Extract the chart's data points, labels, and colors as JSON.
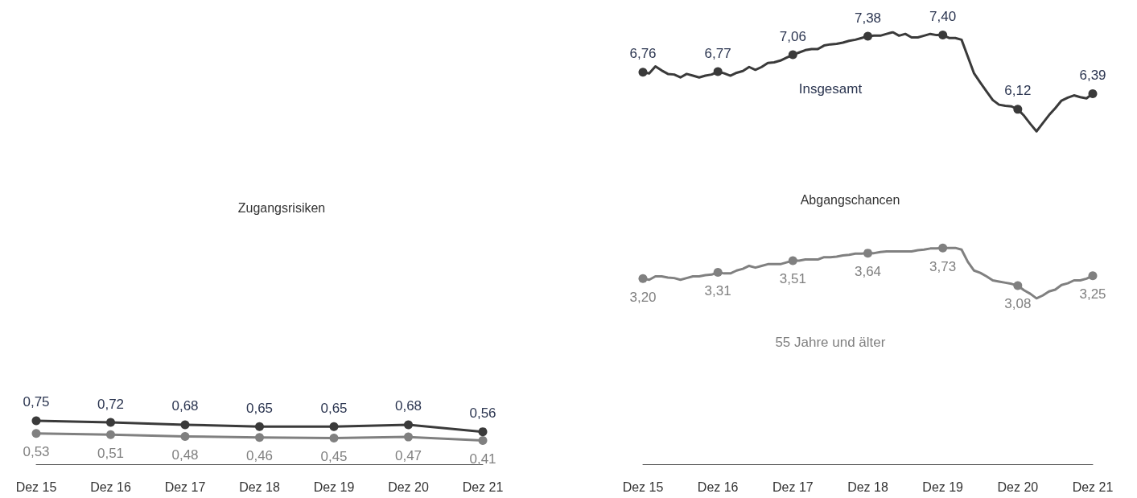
{
  "chart_data": [
    {
      "type": "line",
      "title": "Zugangsrisiken",
      "categories": [
        "Dez 15",
        "Dez 16",
        "Dez 17",
        "Dez 18",
        "Dez 19",
        "Dez 20",
        "Dez 21"
      ],
      "tick_labels": "x",
      "marker": "circle",
      "series": [
        {
          "color": "#3a3a3a",
          "values": [
            0.75,
            0.72,
            0.68,
            0.65,
            0.65,
            0.68,
            0.56
          ],
          "value_labels": [
            "0,75",
            "0,72",
            "0,68",
            "0,65",
            "0,65",
            "0,68",
            "0,56"
          ]
        },
        {
          "color": "#808080",
          "values": [
            0.53,
            0.51,
            0.48,
            0.46,
            0.45,
            0.47,
            0.41
          ],
          "value_labels": [
            "0,53",
            "0,51",
            "0,48",
            "0,46",
            "0,45",
            "0,47",
            "0,41"
          ]
        }
      ]
    },
    {
      "type": "line",
      "title": "Abgangschancen",
      "categories": [
        "Dez 15",
        null,
        null,
        null,
        null,
        null,
        null,
        null,
        null,
        null,
        null,
        null,
        "Dez 16",
        null,
        null,
        null,
        null,
        null,
        null,
        null,
        null,
        null,
        null,
        null,
        "Dez 17",
        null,
        null,
        null,
        null,
        null,
        null,
        null,
        null,
        null,
        null,
        null,
        "Dez 18",
        null,
        null,
        null,
        null,
        null,
        null,
        null,
        null,
        null,
        null,
        null,
        "Dez 19",
        null,
        null,
        null,
        null,
        null,
        null,
        null,
        null,
        null,
        null,
        null,
        "Dez 20",
        null,
        null,
        null,
        null,
        null,
        null,
        null,
        null,
        null,
        null,
        null,
        "Dez 21"
      ],
      "tick_labels": "x",
      "series": [
        {
          "name": "Insgesamt",
          "color": "#3a3a3a",
          "values": [
            6.76,
            6.74,
            6.86,
            6.79,
            6.73,
            6.72,
            6.67,
            6.73,
            6.7,
            6.67,
            6.7,
            6.72,
            6.77,
            6.74,
            6.7,
            6.75,
            6.78,
            6.85,
            6.8,
            6.85,
            6.92,
            6.93,
            6.96,
            7.01,
            7.06,
            7.1,
            7.14,
            7.16,
            7.16,
            7.22,
            7.24,
            7.25,
            7.27,
            7.3,
            7.32,
            7.35,
            7.38,
            7.39,
            7.39,
            7.42,
            7.45,
            7.39,
            7.42,
            7.36,
            7.36,
            7.39,
            7.42,
            7.4,
            7.4,
            7.35,
            7.35,
            7.32,
            7.03,
            6.74,
            6.58,
            6.43,
            6.28,
            6.2,
            6.18,
            6.17,
            6.12,
            6.01,
            5.87,
            5.74,
            5.88,
            6.02,
            6.14,
            6.27,
            6.32,
            6.36,
            6.33,
            6.31,
            6.39
          ],
          "value_labels": [
            "6,76",
            null,
            null,
            null,
            null,
            null,
            null,
            null,
            null,
            null,
            null,
            null,
            "6,77",
            null,
            null,
            null,
            null,
            null,
            null,
            null,
            null,
            null,
            null,
            null,
            "7,06",
            null,
            null,
            null,
            null,
            null,
            null,
            null,
            null,
            null,
            null,
            null,
            "7,38",
            null,
            null,
            null,
            null,
            null,
            null,
            null,
            null,
            null,
            null,
            null,
            "7,40",
            null,
            null,
            null,
            null,
            null,
            null,
            null,
            null,
            null,
            null,
            null,
            "6,12",
            null,
            null,
            null,
            null,
            null,
            null,
            null,
            null,
            null,
            null,
            null,
            "6,39"
          ]
        },
        {
          "name": "55 Jahre und älter",
          "color": "#808080",
          "values": [
            3.2,
            3.18,
            3.24,
            3.24,
            3.22,
            3.21,
            3.18,
            3.21,
            3.24,
            3.24,
            3.26,
            3.27,
            3.31,
            3.29,
            3.29,
            3.34,
            3.37,
            3.42,
            3.39,
            3.42,
            3.45,
            3.45,
            3.45,
            3.48,
            3.51,
            3.51,
            3.53,
            3.53,
            3.53,
            3.57,
            3.57,
            3.58,
            3.6,
            3.61,
            3.63,
            3.63,
            3.64,
            3.64,
            3.66,
            3.67,
            3.67,
            3.67,
            3.67,
            3.67,
            3.69,
            3.7,
            3.72,
            3.72,
            3.73,
            3.73,
            3.73,
            3.7,
            3.49,
            3.34,
            3.3,
            3.24,
            3.17,
            3.15,
            3.13,
            3.11,
            3.08,
            3,
            2.94,
            2.86,
            2.91,
            2.98,
            3.01,
            3.09,
            3.12,
            3.17,
            3.17,
            3.2,
            3.25
          ],
          "value_labels": [
            "3,20",
            null,
            null,
            null,
            null,
            null,
            null,
            null,
            null,
            null,
            null,
            null,
            "3,31",
            null,
            null,
            null,
            null,
            null,
            null,
            null,
            null,
            null,
            null,
            null,
            "3,51",
            null,
            null,
            null,
            null,
            null,
            null,
            null,
            null,
            null,
            null,
            null,
            "3,64",
            null,
            null,
            null,
            null,
            null,
            null,
            null,
            null,
            null,
            null,
            null,
            "3,73",
            null,
            null,
            null,
            null,
            null,
            null,
            null,
            null,
            null,
            null,
            null,
            "3,08",
            null,
            null,
            null,
            null,
            null,
            null,
            null,
            null,
            null,
            null,
            null,
            "3,25"
          ]
        }
      ]
    }
  ]
}
